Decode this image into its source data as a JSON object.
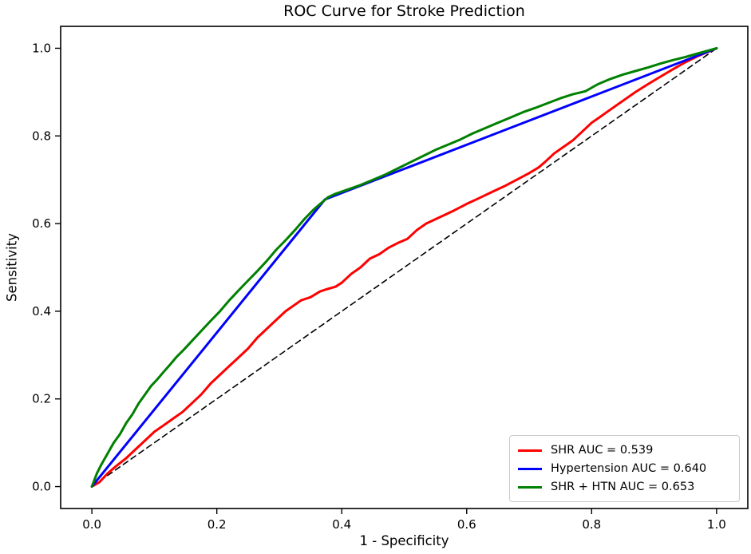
{
  "chart_data": {
    "type": "line",
    "title": "ROC Curve for Stroke Prediction",
    "xlabel": "1 - Specificity",
    "ylabel": "Sensitivity",
    "xlim": [
      -0.05,
      1.05
    ],
    "ylim": [
      -0.05,
      1.05
    ],
    "grid": false,
    "xticks": {
      "values": [
        0.0,
        0.2,
        0.4,
        0.6,
        0.8,
        1.0
      ],
      "labels": [
        "0.0",
        "0.2",
        "0.4",
        "0.6",
        "0.8",
        "1.0"
      ]
    },
    "yticks": {
      "values": [
        0.0,
        0.2,
        0.4,
        0.6,
        0.8,
        1.0
      ],
      "labels": [
        "0.0",
        "0.2",
        "0.4",
        "0.6",
        "0.8",
        "1.0"
      ]
    },
    "legend": {
      "position": "lower right"
    },
    "colors": {
      "shr": "#ff0000",
      "hypertension": "#0000ff",
      "shr_htn": "#008000",
      "chance": "#000000"
    },
    "series": [
      {
        "name": "SHR AUC = 0.539",
        "auc": 0.539,
        "color": "#ff0000",
        "style": "solid",
        "points": [
          [
            0,
            0
          ],
          [
            0.012,
            0.01
          ],
          [
            0.025,
            0.03
          ],
          [
            0.04,
            0.048
          ],
          [
            0.055,
            0.065
          ],
          [
            0.07,
            0.085
          ],
          [
            0.085,
            0.105
          ],
          [
            0.1,
            0.125
          ],
          [
            0.115,
            0.14
          ],
          [
            0.13,
            0.155
          ],
          [
            0.145,
            0.17
          ],
          [
            0.16,
            0.19
          ],
          [
            0.175,
            0.21
          ],
          [
            0.19,
            0.235
          ],
          [
            0.205,
            0.255
          ],
          [
            0.22,
            0.275
          ],
          [
            0.235,
            0.295
          ],
          [
            0.25,
            0.315
          ],
          [
            0.265,
            0.34
          ],
          [
            0.28,
            0.36
          ],
          [
            0.295,
            0.38
          ],
          [
            0.31,
            0.4
          ],
          [
            0.325,
            0.415
          ],
          [
            0.335,
            0.425
          ],
          [
            0.35,
            0.432
          ],
          [
            0.365,
            0.445
          ],
          [
            0.375,
            0.45
          ],
          [
            0.39,
            0.456
          ],
          [
            0.4,
            0.465
          ],
          [
            0.415,
            0.485
          ],
          [
            0.43,
            0.5
          ],
          [
            0.445,
            0.52
          ],
          [
            0.46,
            0.53
          ],
          [
            0.475,
            0.545
          ],
          [
            0.49,
            0.556
          ],
          [
            0.505,
            0.565
          ],
          [
            0.52,
            0.585
          ],
          [
            0.535,
            0.6
          ],
          [
            0.55,
            0.61
          ],
          [
            0.565,
            0.62
          ],
          [
            0.58,
            0.63
          ],
          [
            0.6,
            0.645
          ],
          [
            0.62,
            0.658
          ],
          [
            0.64,
            0.672
          ],
          [
            0.66,
            0.685
          ],
          [
            0.68,
            0.7
          ],
          [
            0.7,
            0.715
          ],
          [
            0.715,
            0.728
          ],
          [
            0.725,
            0.74
          ],
          [
            0.74,
            0.76
          ],
          [
            0.755,
            0.775
          ],
          [
            0.77,
            0.79
          ],
          [
            0.785,
            0.81
          ],
          [
            0.8,
            0.83
          ],
          [
            0.815,
            0.845
          ],
          [
            0.83,
            0.86
          ],
          [
            0.85,
            0.88
          ],
          [
            0.87,
            0.9
          ],
          [
            0.89,
            0.918
          ],
          [
            0.91,
            0.935
          ],
          [
            0.93,
            0.952
          ],
          [
            0.95,
            0.968
          ],
          [
            0.97,
            0.982
          ],
          [
            1,
            1
          ]
        ]
      },
      {
        "name": "Hypertension AUC = 0.640",
        "auc": 0.64,
        "color": "#0000ff",
        "style": "solid",
        "points": [
          [
            0,
            0
          ],
          [
            0.373,
            0.655
          ],
          [
            1,
            1
          ]
        ]
      },
      {
        "name": "SHR + HTN AUC = 0.653",
        "auc": 0.653,
        "color": "#008000",
        "style": "solid",
        "points": [
          [
            0,
            0
          ],
          [
            0.008,
            0.03
          ],
          [
            0.015,
            0.05
          ],
          [
            0.025,
            0.075
          ],
          [
            0.035,
            0.1
          ],
          [
            0.045,
            0.12
          ],
          [
            0.055,
            0.145
          ],
          [
            0.065,
            0.165
          ],
          [
            0.075,
            0.19
          ],
          [
            0.085,
            0.21
          ],
          [
            0.095,
            0.23
          ],
          [
            0.105,
            0.245
          ],
          [
            0.115,
            0.262
          ],
          [
            0.125,
            0.278
          ],
          [
            0.135,
            0.295
          ],
          [
            0.147,
            0.312
          ],
          [
            0.16,
            0.332
          ],
          [
            0.175,
            0.355
          ],
          [
            0.19,
            0.378
          ],
          [
            0.205,
            0.4
          ],
          [
            0.22,
            0.425
          ],
          [
            0.235,
            0.448
          ],
          [
            0.25,
            0.47
          ],
          [
            0.265,
            0.492
          ],
          [
            0.28,
            0.515
          ],
          [
            0.295,
            0.54
          ],
          [
            0.31,
            0.562
          ],
          [
            0.325,
            0.585
          ],
          [
            0.34,
            0.61
          ],
          [
            0.355,
            0.632
          ],
          [
            0.368,
            0.648
          ],
          [
            0.378,
            0.66
          ],
          [
            0.39,
            0.668
          ],
          [
            0.41,
            0.678
          ],
          [
            0.43,
            0.688
          ],
          [
            0.45,
            0.7
          ],
          [
            0.47,
            0.712
          ],
          [
            0.49,
            0.726
          ],
          [
            0.51,
            0.74
          ],
          [
            0.53,
            0.754
          ],
          [
            0.55,
            0.768
          ],
          [
            0.57,
            0.78
          ],
          [
            0.59,
            0.792
          ],
          [
            0.61,
            0.806
          ],
          [
            0.63,
            0.818
          ],
          [
            0.65,
            0.83
          ],
          [
            0.67,
            0.842
          ],
          [
            0.69,
            0.854
          ],
          [
            0.71,
            0.864
          ],
          [
            0.73,
            0.875
          ],
          [
            0.75,
            0.886
          ],
          [
            0.77,
            0.895
          ],
          [
            0.79,
            0.902
          ],
          [
            0.81,
            0.918
          ],
          [
            0.83,
            0.93
          ],
          [
            0.85,
            0.94
          ],
          [
            0.87,
            0.948
          ],
          [
            0.89,
            0.956
          ],
          [
            0.91,
            0.965
          ],
          [
            0.93,
            0.973
          ],
          [
            0.95,
            0.98
          ],
          [
            0.97,
            0.988
          ],
          [
            1,
            1
          ]
        ]
      },
      {
        "name": "chance-diagonal",
        "color": "#000000",
        "style": "dashed",
        "in_legend": false,
        "points": [
          [
            0,
            0
          ],
          [
            1,
            1
          ]
        ]
      }
    ]
  }
}
